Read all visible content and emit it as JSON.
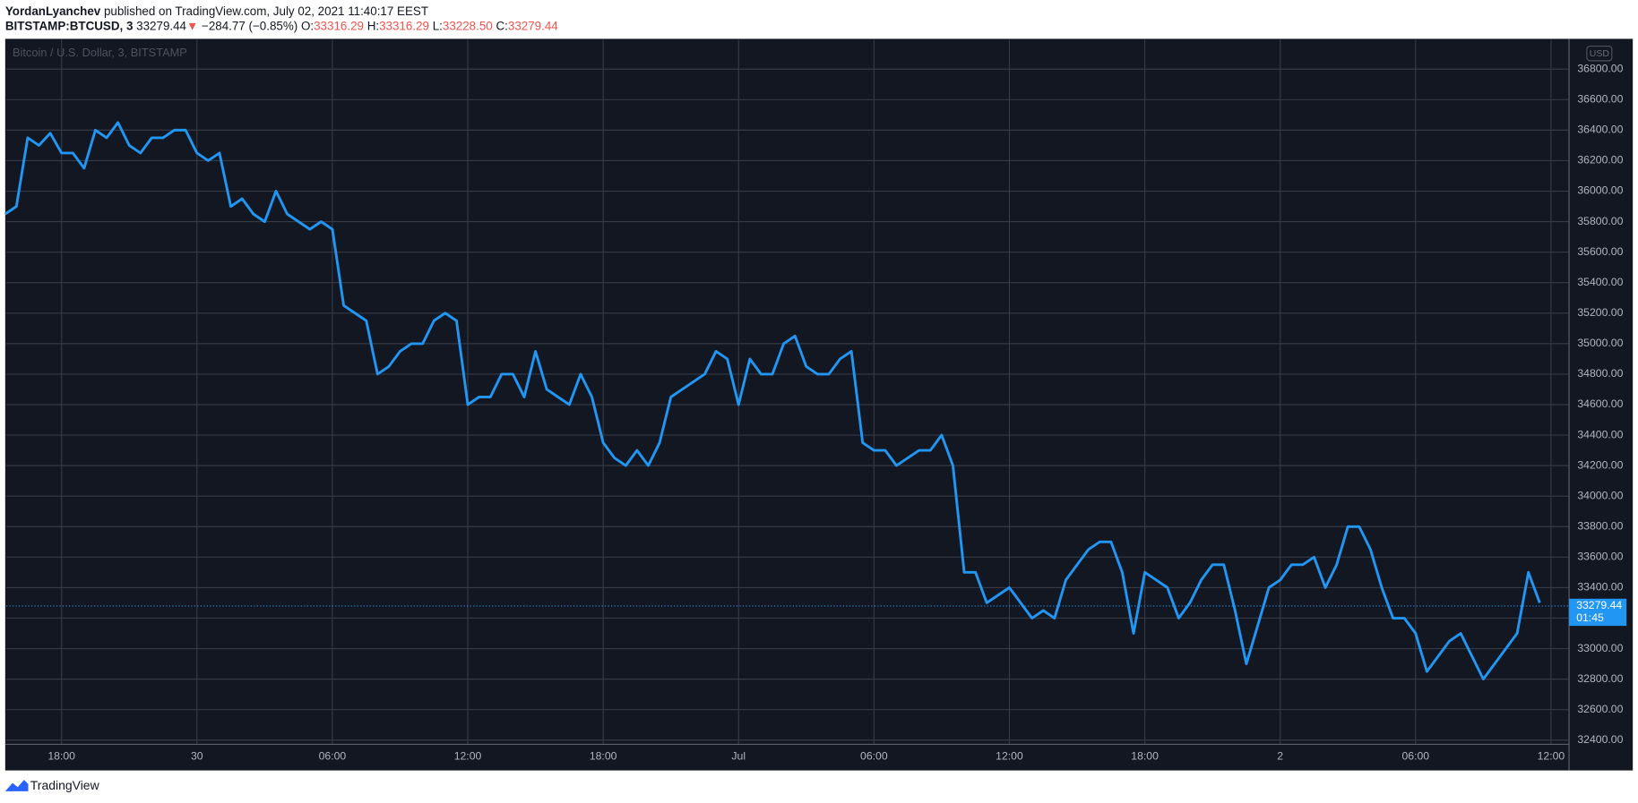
{
  "header": {
    "author": "YordanLyanchev",
    "published": "published on TradingView.com, July 02, 2021 11:40:17 EEST",
    "symbol": "BITSTAMP:BTCUSD, 3",
    "last": "33279.44",
    "arrow": "▼",
    "change": "−284.77 (−0.85%)",
    "open_label": "O:",
    "open": "33316.29",
    "high_label": "H:",
    "high": "33316.29",
    "low_label": "L:",
    "low": "33228.50",
    "close_label": "C:",
    "close": "33279.44"
  },
  "chart_data": {
    "type": "line",
    "watermark": "Bitcoin / U.S. Dollar, 3, BITSTAMP",
    "currency": "USD",
    "color": "#2196f3",
    "values": [
      35850,
      35900,
      36350,
      36300,
      36380,
      36250,
      36250,
      36150,
      36400,
      36350,
      36450,
      36300,
      36250,
      36350,
      36350,
      36400,
      36400,
      36250,
      36200,
      36250,
      35900,
      35950,
      35850,
      35800,
      36000,
      35850,
      35800,
      35750,
      35800,
      35750,
      35250,
      35200,
      35150,
      34800,
      34850,
      34950,
      35000,
      35000,
      35150,
      35200,
      35150,
      34600,
      34650,
      34650,
      34800,
      34800,
      34650,
      34950,
      34700,
      34650,
      34600,
      34800,
      34650,
      34350,
      34250,
      34200,
      34300,
      34200,
      34350,
      34650,
      34700,
      34750,
      34800,
      34950,
      34900,
      34600,
      34900,
      34800,
      34800,
      35000,
      35050,
      34850,
      34800,
      34800,
      34900,
      34950,
      34350,
      34300,
      34300,
      34200,
      34250,
      34300,
      34300,
      34400,
      34200,
      33500,
      33500,
      33300,
      33350,
      33400,
      33300,
      33200,
      33250,
      33200,
      33450,
      33550,
      33650,
      33700,
      33700,
      33500,
      33100,
      33500,
      33450,
      33400,
      33200,
      33300,
      33450,
      33550,
      33550,
      33250,
      32900,
      33150,
      33400,
      33450,
      33550,
      33550,
      33600,
      33400,
      33550,
      33800,
      33800,
      33650,
      33400,
      33200,
      33200,
      33100,
      32850,
      32950,
      33050,
      33100,
      32950,
      32800,
      32900,
      33000,
      33100,
      33500,
      33300
    ],
    "xlim": [
      0.1,
      138.6
    ],
    "xticks": [
      {
        "value": 5,
        "label": "18:00"
      },
      {
        "value": 17,
        "label": "30"
      },
      {
        "value": 29,
        "label": "06:00"
      },
      {
        "value": 41,
        "label": "12:00"
      },
      {
        "value": 53,
        "label": "18:00"
      },
      {
        "value": 65,
        "label": "Jul"
      },
      {
        "value": 77,
        "label": "06:00"
      },
      {
        "value": 89,
        "label": "12:00"
      },
      {
        "value": 101,
        "label": "18:00"
      },
      {
        "value": 113,
        "label": "2"
      },
      {
        "value": 125,
        "label": "06:00"
      },
      {
        "value": 137,
        "label": "12:00"
      }
    ],
    "ylim": [
      32208,
      36992
    ],
    "yticks": [
      {
        "value": 32400,
        "label": "32400.00"
      },
      {
        "value": 32600,
        "label": "32600.00"
      },
      {
        "value": 32800,
        "label": "32800.00"
      },
      {
        "value": 33000,
        "label": "33000.00"
      },
      {
        "value": 33200,
        "label": "33200.00"
      },
      {
        "value": 33400,
        "label": "33400.00"
      },
      {
        "value": 33600,
        "label": "33600.00"
      },
      {
        "value": 33800,
        "label": "33800.00"
      },
      {
        "value": 34000,
        "label": "34000.00"
      },
      {
        "value": 34200,
        "label": "34200.00"
      },
      {
        "value": 34400,
        "label": "34400.00"
      },
      {
        "value": 34600,
        "label": "34600.00"
      },
      {
        "value": 34800,
        "label": "34800.00"
      },
      {
        "value": 35000,
        "label": "35000.00"
      },
      {
        "value": 35200,
        "label": "35200.00"
      },
      {
        "value": 35400,
        "label": "35400.00"
      },
      {
        "value": 35600,
        "label": "35600.00"
      },
      {
        "value": 35800,
        "label": "35800.00"
      },
      {
        "value": 36000,
        "label": "36000.00"
      },
      {
        "value": 36200,
        "label": "36200.00"
      },
      {
        "value": 36400,
        "label": "36400.00"
      },
      {
        "value": 36600,
        "label": "36600.00"
      },
      {
        "value": 36800,
        "label": "36800.00"
      }
    ],
    "grid": true,
    "last_price": 33279.44,
    "countdown": "01:45"
  },
  "footer": {
    "brand": "TradingView"
  }
}
